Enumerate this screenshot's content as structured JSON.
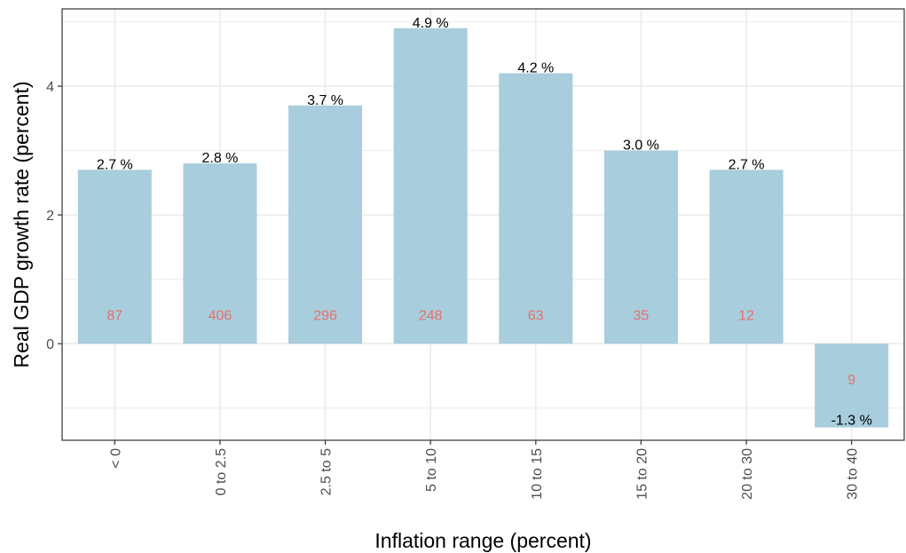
{
  "chart_data": {
    "type": "bar",
    "xlabel": "Inflation range (percent)",
    "ylabel": "Real GDP growth rate (percent)",
    "categories": [
      "< 0",
      "0 to 2.5",
      "2.5 to 5",
      "5 to 10",
      "10 to 15",
      "15 to 20",
      "20 to 30",
      "30 to 40"
    ],
    "values": [
      2.7,
      2.8,
      3.7,
      4.9,
      4.2,
      3.0,
      2.7,
      -1.3
    ],
    "value_labels": [
      "2.7 %",
      "2.8 %",
      "3.7 %",
      "4.9 %",
      "4.2 %",
      "3.0 %",
      "2.7 %",
      "-1.3 %"
    ],
    "counts": [
      "87",
      "406",
      "296",
      "248",
      "63",
      "35",
      "12",
      "9"
    ],
    "count_y": [
      0.45,
      0.45,
      0.45,
      0.45,
      0.45,
      0.45,
      0.45,
      -0.55
    ],
    "y_ticks": [
      0,
      2,
      4
    ],
    "y_tick_labels": [
      "0",
      "2",
      "4"
    ],
    "ylim": [
      -1.5,
      5.2
    ],
    "grid": true,
    "bar_color": "#a8cddc",
    "count_color": "#e8706b",
    "grid_color": "#ebebeb",
    "panel_border_color": "#333333"
  }
}
